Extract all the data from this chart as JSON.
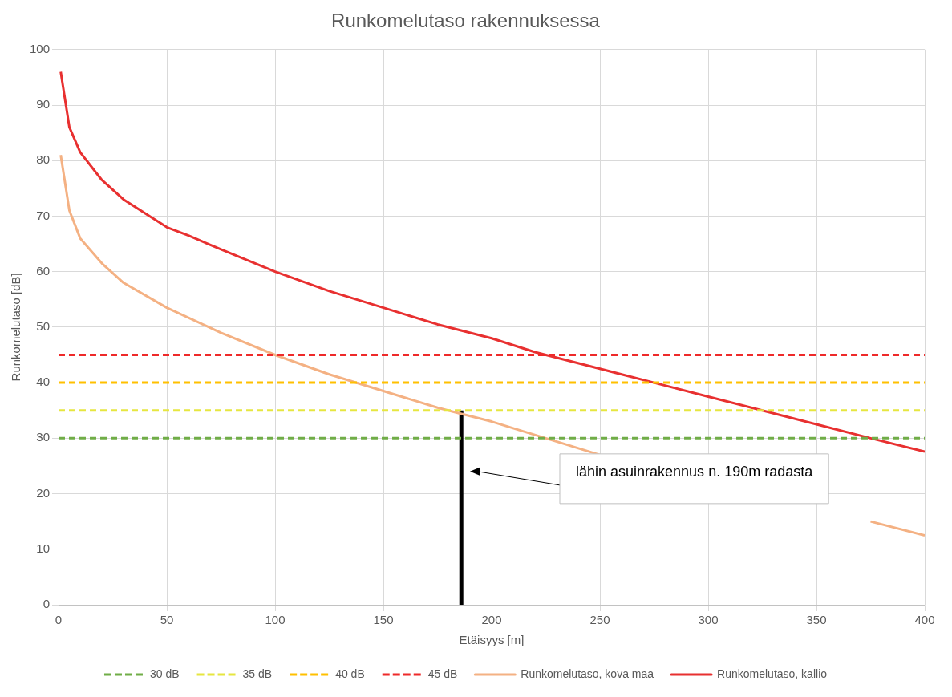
{
  "chart_data": {
    "type": "line",
    "title": "Runkomelutaso rakennuksessa",
    "xlabel": "Etäisyys [m]",
    "ylabel": "Runkomelutaso [dB]",
    "xlim": [
      0,
      400
    ],
    "xticks": [
      0,
      50,
      100,
      150,
      200,
      250,
      300,
      350,
      400
    ],
    "ylim": [
      0,
      100
    ],
    "yticks": [
      0,
      10,
      20,
      30,
      40,
      50,
      60,
      70,
      80,
      90,
      100
    ],
    "grid": true,
    "legend": "bottom",
    "marker": "none",
    "series": [
      {
        "name": "30 dB",
        "color": "#70ad47",
        "line_style": "dashed",
        "x": [
          0,
          400
        ],
        "values": [
          30,
          30
        ]
      },
      {
        "name": "35 dB",
        "color": "#e6e640",
        "line_style": "dashed",
        "x": [
          0,
          400
        ],
        "values": [
          35,
          35
        ]
      },
      {
        "name": "40 dB",
        "color": "#ffc000",
        "line_style": "dashed",
        "x": [
          0,
          400
        ],
        "values": [
          40,
          40
        ]
      },
      {
        "name": "45 dB",
        "color": "#ee2a2a",
        "line_style": "dashed",
        "x": [
          0,
          400
        ],
        "values": [
          45,
          45
        ]
      },
      {
        "name": "Runkomelutaso, kova maa",
        "color": "#f4b183",
        "line_style": "solid",
        "x": [
          1,
          5,
          10,
          20,
          30,
          50,
          75,
          100,
          125,
          150,
          175,
          185,
          200,
          225,
          250,
          260,
          275,
          300,
          325,
          350,
          375,
          400
        ],
        "values": [
          81,
          71,
          66,
          61.5,
          58,
          53.5,
          49,
          45,
          41.5,
          38.5,
          35.5,
          34.5,
          33,
          30,
          27,
          null,
          null,
          null,
          null,
          null,
          15,
          12.5
        ]
      },
      {
        "name": "Runkomelutaso, kallio",
        "color": "#e83030",
        "line_style": "solid",
        "x": [
          1,
          5,
          10,
          20,
          30,
          40,
          50,
          60,
          75,
          100,
          125,
          150,
          175,
          200,
          220,
          250,
          275,
          300,
          325,
          350,
          375,
          400
        ],
        "values": [
          96,
          86,
          81.5,
          76.5,
          73,
          70.5,
          68,
          66.5,
          64,
          60,
          56.5,
          53.5,
          50.5,
          48,
          45.5,
          42.5,
          40,
          37.5,
          35,
          32.5,
          30,
          27.6
        ]
      },
      {
        "color": "#000000",
        "line_style": "solid",
        "x": [
          186,
          186
        ],
        "values": [
          0,
          35
        ]
      }
    ],
    "annotations": [
      "lähin asuinrakennus n. 190m radasta"
    ]
  }
}
